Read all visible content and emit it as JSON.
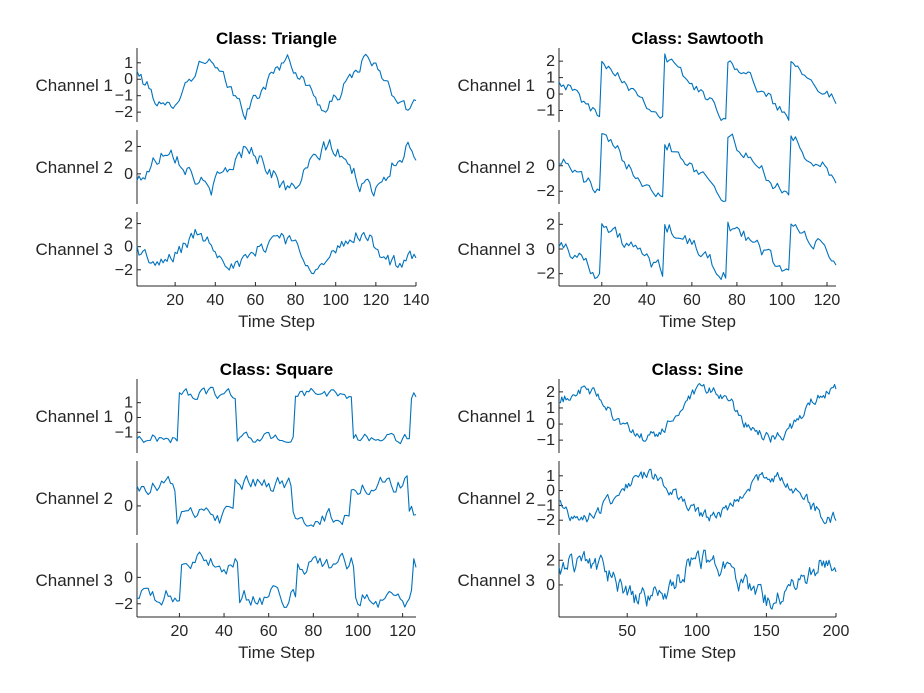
{
  "chart_data": [
    {
      "type": "line",
      "title": "Class: Triangle",
      "xlabel": "Time Step",
      "xlim": [
        1,
        140
      ],
      "xticks": [
        20,
        40,
        60,
        80,
        100,
        120,
        140
      ],
      "color": "#0072BD",
      "wave": "triangle",
      "n": 140,
      "channels": [
        {
          "name": "Channel 1",
          "yticks": [
            1,
            0,
            -1,
            -2
          ],
          "ylim": [
            -2.6,
            1.9
          ],
          "period": 40,
          "phase": 0.12,
          "amp": 1.7,
          "offset": -0.3,
          "noise": 0.35
        },
        {
          "name": "Channel 2",
          "yticks": [
            2,
            0
          ],
          "ylim": [
            -2.2,
            3.2
          ],
          "period": 40,
          "phase": 0.58,
          "amp": 1.8,
          "offset": 0.4,
          "noise": 0.55
        },
        {
          "name": "Channel 3",
          "yticks": [
            2,
            0,
            -2
          ],
          "ylim": [
            -3.4,
            3.0
          ],
          "period": 40,
          "phase": 0.2,
          "amp": 1.6,
          "offset": -0.3,
          "noise": 0.6
        }
      ]
    },
    {
      "type": "line",
      "title": "Class: Sawtooth",
      "xlabel": "Time Step",
      "xlim": [
        1,
        124
      ],
      "xticks": [
        20,
        40,
        60,
        80,
        100,
        120
      ],
      "color": "#0072BD",
      "wave": "sawtooth",
      "n": 124,
      "channels": [
        {
          "name": "Channel 1",
          "yticks": [
            2,
            1,
            0,
            -1
          ],
          "ylim": [
            -1.7,
            2.8
          ],
          "period": 28,
          "phase": 0.3,
          "amp": 1.9,
          "offset": 0.4,
          "noise": 0.3
        },
        {
          "name": "Channel 2",
          "yticks": [
            0,
            -2
          ],
          "ylim": [
            -3.0,
            2.8
          ],
          "period": 28,
          "phase": 0.3,
          "amp": 2.2,
          "offset": -0.1,
          "noise": 0.5
        },
        {
          "name": "Channel 3",
          "yticks": [
            2,
            0,
            -2
          ],
          "ylim": [
            -3.0,
            3.0
          ],
          "period": 28,
          "phase": 0.3,
          "amp": 2.0,
          "offset": 0.0,
          "noise": 0.55
        }
      ]
    },
    {
      "type": "line",
      "title": "Class: Square",
      "xlabel": "Time Step",
      "xlim": [
        1,
        126
      ],
      "xticks": [
        20,
        40,
        60,
        80,
        100,
        120
      ],
      "color": "#0072BD",
      "wave": "square",
      "n": 126,
      "channels": [
        {
          "name": "Channel 1",
          "yticks": [
            1,
            0,
            -1
          ],
          "ylim": [
            -2.4,
            2.6
          ],
          "period": 52,
          "phase": 0.63,
          "amp": 1.5,
          "offset": 0.1,
          "noise": 0.3
        },
        {
          "name": "Channel 2",
          "yticks": [
            0
          ],
          "ylim": [
            -2.2,
            3.4
          ],
          "period": 52,
          "phase": 0.15,
          "amp": 1.2,
          "offset": 0.4,
          "noise": 0.55
        },
        {
          "name": "Channel 3",
          "yticks": [
            0,
            -2
          ],
          "ylim": [
            -3.0,
            2.6
          ],
          "period": 52,
          "phase": 0.6,
          "amp": 1.3,
          "offset": -0.2,
          "noise": 0.6
        }
      ]
    },
    {
      "type": "line",
      "title": "Class: Sine",
      "xlabel": "Time Step",
      "xlim": [
        1,
        200
      ],
      "xticks": [
        50,
        100,
        150,
        200
      ],
      "color": "#0072BD",
      "wave": "sine",
      "n": 200,
      "channels": [
        {
          "name": "Channel 1",
          "yticks": [
            2,
            1,
            0,
            -1
          ],
          "ylim": [
            -1.8,
            2.8
          ],
          "period": 90,
          "phase": 0.05,
          "amp": 1.5,
          "offset": 0.6,
          "noise": 0.3
        },
        {
          "name": "Channel 2",
          "yticks": [
            1,
            0,
            -1,
            -2
          ],
          "ylim": [
            -3.0,
            2.0
          ],
          "period": 90,
          "phase": 0.55,
          "amp": 1.4,
          "offset": -0.4,
          "noise": 0.35
        },
        {
          "name": "Channel 3",
          "yticks": [
            2,
            0
          ],
          "ylim": [
            -2.6,
            3.4
          ],
          "period": 90,
          "phase": 0.05,
          "amp": 1.6,
          "offset": 0.4,
          "noise": 0.7
        }
      ]
    }
  ]
}
